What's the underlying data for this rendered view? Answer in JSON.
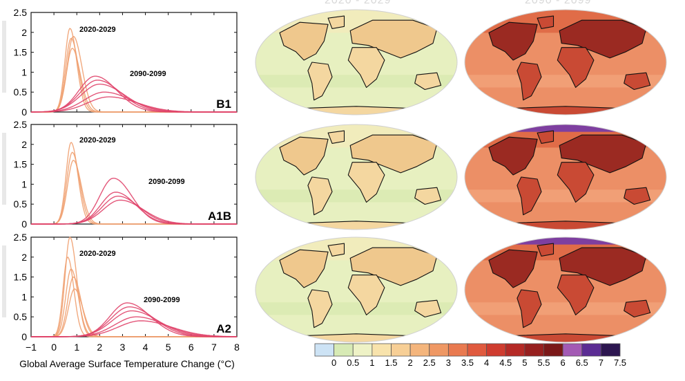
{
  "chart_data": [
    {
      "type": "line",
      "panel_label": "B1",
      "annotations": [
        "2020-2029",
        "2090-2099"
      ],
      "xlim": [
        -1,
        8
      ],
      "ylim": [
        0,
        2.5
      ],
      "series_groups": [
        {
          "period": "2020-2029",
          "color": "#f0a070",
          "peaks": [
            0.7,
            0.75,
            0.8,
            0.85
          ],
          "heights": [
            2.1,
            1.85,
            1.6,
            1.9
          ],
          "width": 0.22
        },
        {
          "period": "2090-2099",
          "color": "#e0446a",
          "peaks": [
            1.8,
            1.9,
            2.0,
            2.2,
            2.4
          ],
          "heights": [
            0.9,
            0.8,
            0.7,
            0.5,
            0.38
          ],
          "width": 0.7
        }
      ]
    },
    {
      "type": "line",
      "panel_label": "A1B",
      "annotations": [
        "2020-2029",
        "2090-2099"
      ],
      "xlim": [
        -1,
        8
      ],
      "ylim": [
        0,
        2.5
      ],
      "series_groups": [
        {
          "period": "2020-2029",
          "color": "#f0a070",
          "peaks": [
            0.75,
            0.8,
            0.85
          ],
          "heights": [
            2.05,
            1.8,
            1.6
          ],
          "width": 0.22
        },
        {
          "period": "2090-2099",
          "color": "#e0446a",
          "peaks": [
            2.6,
            2.7,
            2.8,
            2.9
          ],
          "heights": [
            1.15,
            0.8,
            0.7,
            0.6
          ],
          "width": 0.6
        }
      ]
    },
    {
      "type": "line",
      "panel_label": "A2",
      "annotations": [
        "2020-2029",
        "2090-2099"
      ],
      "xlim": [
        -1,
        8
      ],
      "ylim": [
        0,
        2.5
      ],
      "xlabel": "Global Average Surface Temperature Change (°C)",
      "xticks": [
        "−1",
        "0",
        "1",
        "2",
        "3",
        "4",
        "5",
        "6",
        "7",
        "8"
      ],
      "series_groups": [
        {
          "period": "2020-2029",
          "color": "#f0a070",
          "peaks": [
            0.6,
            0.7,
            0.75,
            0.85,
            0.9
          ],
          "heights": [
            2.0,
            2.5,
            1.7,
            1.5,
            1.2
          ],
          "width": 0.2
        },
        {
          "period": "2090-2099",
          "color": "#e0446a",
          "peaks": [
            3.2,
            3.3,
            3.4,
            3.6,
            3.8
          ],
          "heights": [
            0.85,
            0.75,
            0.65,
            0.5,
            0.4
          ],
          "width": 0.75
        }
      ]
    }
  ],
  "yticks": [
    "0",
    "0.5",
    "1",
    "1.5",
    "2",
    "2.5"
  ],
  "colorbar": {
    "labels": [
      "0",
      "0.5",
      "1",
      "1.5",
      "2",
      "2.5",
      "3",
      "3.5",
      "4",
      "4.5",
      "5",
      "5.5",
      "6",
      "6.5",
      "7",
      "7.5"
    ],
    "colors": [
      "#cde3f5",
      "#d7eab5",
      "#eef2c6",
      "#f8e3ac",
      "#f7cf96",
      "#f4b57c",
      "#ef9864",
      "#e97a50",
      "#e05a3e",
      "#cf3c2f",
      "#b52a26",
      "#97201f",
      "#7b1818",
      "#a35ab4",
      "#5b2c94",
      "#2d1650"
    ]
  },
  "maps": {
    "col1_fill": "#eef2c6",
    "col2_fill": "#e9815a",
    "col2_dark": "#c13a2a"
  }
}
